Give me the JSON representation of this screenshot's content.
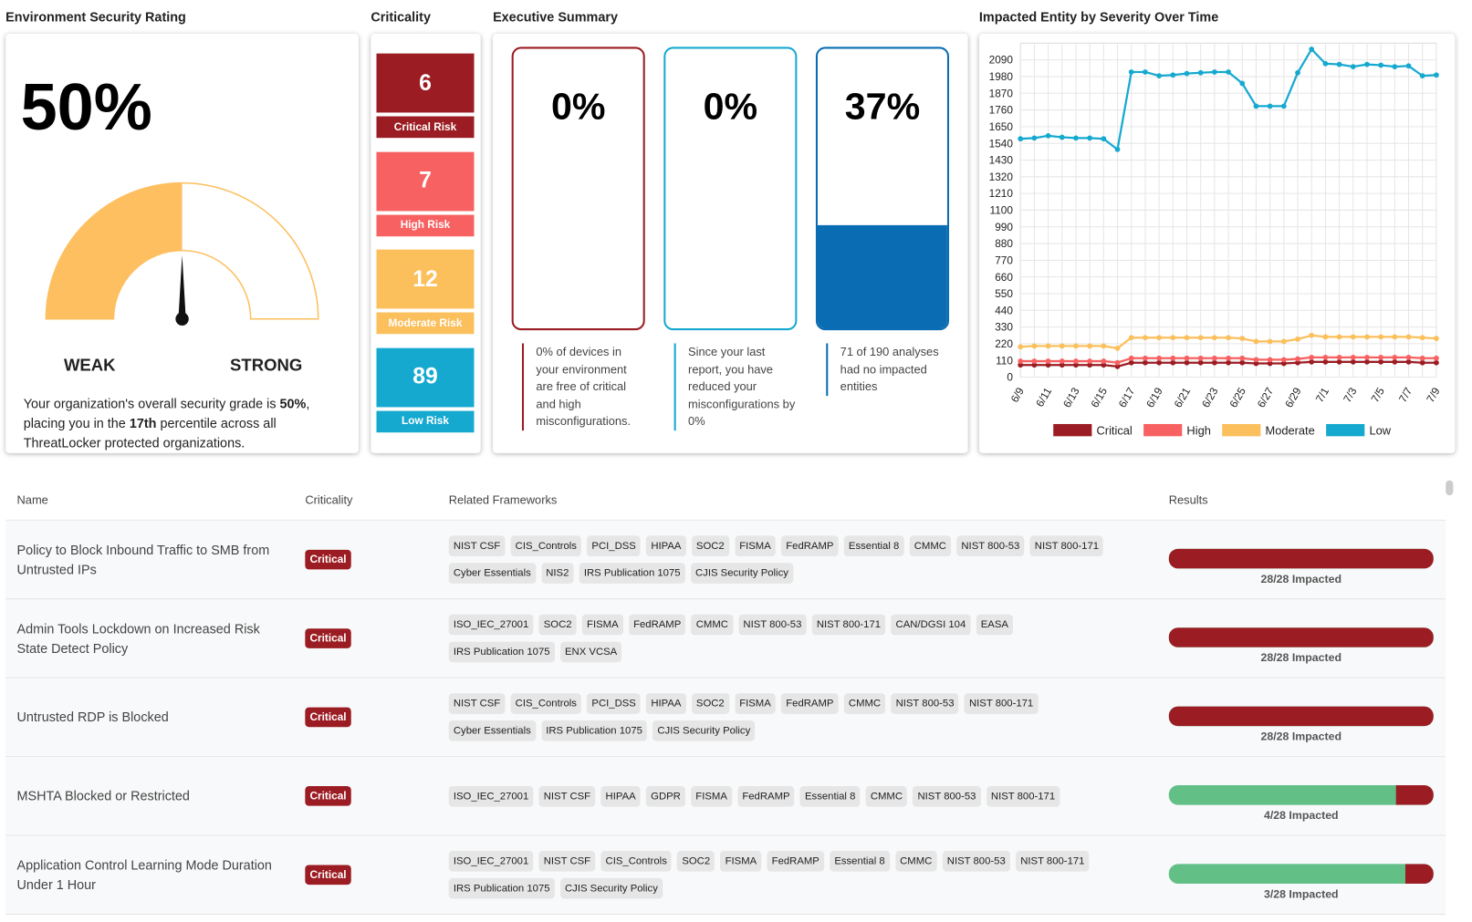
{
  "rating": {
    "title": "Environment Security Rating",
    "value": 50,
    "value_label": "50%",
    "range": [
      0,
      100
    ],
    "low_label": "WEAK",
    "high_label": "STRONG",
    "description": [
      "Your organization's overall security grade is ",
      "50%",
      ", placing you in the ",
      "17th",
      " percentile across all ThreatLocker protected organizations."
    ],
    "color": "#fdbf5f"
  },
  "criticality": {
    "title": "Criticality",
    "items": [
      {
        "count": 6,
        "label": "Critical Risk",
        "color": "#9b1c22"
      },
      {
        "count": 7,
        "label": "High Risk",
        "color": "#f86161"
      },
      {
        "count": 12,
        "label": "Moderate Risk",
        "color": "#fbbf5c"
      },
      {
        "count": 89,
        "label": "Low Risk",
        "color": "#16a9d0"
      }
    ]
  },
  "summary": {
    "title": "Executive Summary",
    "range": [
      0,
      100
    ],
    "cards": [
      {
        "value": 0,
        "value_label": "0%",
        "text": "0% of devices in your environment are free of critical and high misconfigurations.",
        "color": "#9b1c22"
      },
      {
        "value": 0,
        "value_label": "0%",
        "text": "Since your last report, you have reduced your misconfigurations by 0%",
        "color": "#16a9d0"
      },
      {
        "value": 37,
        "value_label": "37%",
        "text": "71 of 190 analyses had no impacted entities",
        "color": "#0a6db3"
      }
    ]
  },
  "chart_data": {
    "type": "line",
    "title": "Impacted Entity by Severity Over Time",
    "categories": [
      "6/9",
      null,
      "6/11",
      null,
      "6/13",
      null,
      "6/15",
      null,
      "6/17",
      null,
      "6/19",
      null,
      "6/21",
      null,
      "6/23",
      null,
      "6/25",
      null,
      "6/27",
      null,
      "6/29",
      null,
      "7/1",
      null,
      "7/3",
      null,
      "7/5",
      null,
      "7/7",
      null,
      "7/9"
    ],
    "series": [
      {
        "name": "Critical",
        "color": "#9b1c22",
        "values": [
          80,
          80,
          80,
          80,
          80,
          80,
          80,
          70,
          95,
          95,
          95,
          95,
          95,
          95,
          95,
          95,
          95,
          90,
          90,
          90,
          95,
          100,
          100,
          100,
          100,
          100,
          100,
          100,
          100,
          95,
          95
        ]
      },
      {
        "name": "High",
        "color": "#f86161",
        "values": [
          105,
          105,
          105,
          105,
          105,
          105,
          105,
          95,
          125,
          125,
          125,
          125,
          125,
          125,
          125,
          125,
          125,
          115,
          115,
          115,
          120,
          130,
          130,
          130,
          130,
          130,
          130,
          130,
          130,
          125,
          125
        ]
      },
      {
        "name": "Moderate",
        "color": "#fbbf5c",
        "values": [
          200,
          205,
          205,
          205,
          205,
          205,
          205,
          190,
          260,
          260,
          260,
          260,
          260,
          260,
          260,
          260,
          255,
          235,
          235,
          235,
          250,
          275,
          265,
          265,
          265,
          265,
          265,
          265,
          265,
          260,
          255
        ]
      },
      {
        "name": "Low",
        "color": "#16a9d0",
        "values": [
          1570,
          1575,
          1590,
          1580,
          1575,
          1575,
          1570,
          1500,
          2010,
          2010,
          1985,
          1990,
          2000,
          2005,
          2010,
          2010,
          1935,
          1785,
          1785,
          1785,
          2005,
          2160,
          2065,
          2060,
          2045,
          2060,
          2055,
          2045,
          2050,
          1985,
          1990
        ]
      }
    ],
    "ylim": [
      0,
      2200
    ],
    "yticks": [
      0,
      110,
      220,
      330,
      440,
      550,
      660,
      770,
      880,
      990,
      1100,
      1210,
      1320,
      1430,
      1540,
      1650,
      1760,
      1870,
      1980,
      2090
    ],
    "grid": true,
    "legend": "bottom"
  },
  "table": {
    "columns": [
      "Name",
      "Criticality",
      "Related Frameworks",
      "Results"
    ],
    "rows": [
      {
        "name": "Policy to Block Inbound Traffic to SMB from Untrusted IPs",
        "criticality": "Critical",
        "frameworks": [
          "NIST CSF",
          "CIS_Controls",
          "PCI_DSS",
          "HIPAA",
          "SOC2",
          "FISMA",
          "FedRAMP",
          "Essential 8",
          "CMMC",
          "NIST 800-53",
          "NIST 800-171",
          "Cyber Essentials",
          "NIS2",
          "IRS Publication 1075",
          "CJIS Security Policy"
        ],
        "impacted": 28,
        "total": 28,
        "result_label": "28/28 Impacted"
      },
      {
        "name": "Admin Tools Lockdown on Increased Risk State Detect Policy",
        "criticality": "Critical",
        "frameworks": [
          "ISO_IEC_27001",
          "SOC2",
          "FISMA",
          "FedRAMP",
          "CMMC",
          "NIST 800-53",
          "NIST 800-171",
          "CAN/DGSI 104",
          "EASA",
          "IRS Publication 1075",
          "ENX VCSA"
        ],
        "impacted": 28,
        "total": 28,
        "result_label": "28/28 Impacted"
      },
      {
        "name": "Untrusted RDP is Blocked",
        "criticality": "Critical",
        "frameworks": [
          "NIST CSF",
          "CIS_Controls",
          "PCI_DSS",
          "HIPAA",
          "SOC2",
          "FISMA",
          "FedRAMP",
          "CMMC",
          "NIST 800-53",
          "NIST 800-171",
          "Cyber Essentials",
          "IRS Publication 1075",
          "CJIS Security Policy"
        ],
        "impacted": 28,
        "total": 28,
        "result_label": "28/28 Impacted"
      },
      {
        "name": "MSHTA Blocked or Restricted",
        "criticality": "Critical",
        "frameworks": [
          "ISO_IEC_27001",
          "NIST CSF",
          "HIPAA",
          "GDPR",
          "FISMA",
          "FedRAMP",
          "Essential 8",
          "CMMC",
          "NIST 800-53",
          "NIST 800-171"
        ],
        "impacted": 4,
        "total": 28,
        "result_label": "4/28 Impacted"
      },
      {
        "name": "Application Control Learning Mode Duration Under 1 Hour",
        "criticality": "Critical",
        "frameworks": [
          "ISO_IEC_27001",
          "NIST CSF",
          "CIS_Controls",
          "SOC2",
          "FISMA",
          "FedRAMP",
          "Essential 8",
          "CMMC",
          "NIST 800-53",
          "NIST 800-171",
          "IRS Publication 1075",
          "CJIS Security Policy"
        ],
        "impacted": 3,
        "total": 28,
        "result_label": "3/28 Impacted"
      }
    ]
  }
}
